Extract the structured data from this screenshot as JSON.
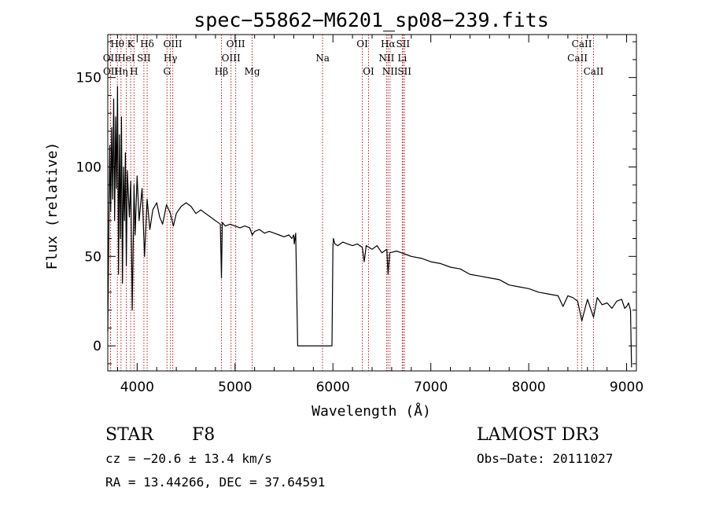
{
  "chart_data": {
    "type": "line",
    "title": "spec−55862−M6201_sp08−239.fits",
    "xlabel": "Wavelength (Å)",
    "ylabel": "Flux (relative)",
    "xlim": [
      3700,
      9100
    ],
    "ylim": [
      -14,
      174
    ],
    "xticks": [
      4000,
      5000,
      6000,
      7000,
      8000,
      9000
    ],
    "xtick_labels": [
      "4000",
      "5000",
      "6000",
      "7000",
      "8000",
      "9000"
    ],
    "yticks": [
      0,
      50,
      100,
      150
    ],
    "ytick_labels": [
      "0",
      "50",
      "100",
      "150"
    ],
    "grid": false,
    "series": [
      {
        "name": "spectrum",
        "x": [
          3700,
          3710,
          3720,
          3730,
          3740,
          3750,
          3760,
          3770,
          3780,
          3790,
          3800,
          3810,
          3820,
          3830,
          3840,
          3850,
          3860,
          3870,
          3880,
          3890,
          3900,
          3920,
          3935,
          3950,
          3968,
          3980,
          4000,
          4020,
          4050,
          4075,
          4102,
          4130,
          4160,
          4200,
          4230,
          4260,
          4300,
          4340,
          4370,
          4400,
          4450,
          4500,
          4550,
          4600,
          4650,
          4700,
          4750,
          4800,
          4850,
          4861,
          4870,
          4900,
          4950,
          5000,
          5050,
          5100,
          5150,
          5175,
          5200,
          5250,
          5300,
          5350,
          5400,
          5450,
          5500,
          5550,
          5580,
          5600,
          5605,
          5620,
          5640,
          5700,
          5800,
          5900,
          5990,
          6000,
          6005,
          6020,
          6050,
          6100,
          6150,
          6200,
          6250,
          6300,
          6320,
          6340,
          6400,
          6450,
          6500,
          6550,
          6563,
          6580,
          6650,
          6700,
          6750,
          6800,
          6900,
          7000,
          7100,
          7200,
          7300,
          7400,
          7500,
          7600,
          7700,
          7800,
          7900,
          8000,
          8100,
          8200,
          8300,
          8350,
          8400,
          8450,
          8500,
          8542,
          8600,
          8662,
          8700,
          8750,
          8800,
          8850,
          8900,
          8950,
          8980,
          9000,
          9020,
          9040,
          9050
        ],
        "values": [
          8,
          60,
          112,
          75,
          122,
          82,
          138,
          70,
          128,
          88,
          145,
          40,
          118,
          60,
          128,
          35,
          100,
          70,
          108,
          45,
          98,
          72,
          92,
          20,
          90,
          62,
          95,
          70,
          88,
          50,
          82,
          65,
          76,
          80,
          72,
          68,
          79,
          74,
          67,
          74,
          78,
          80,
          78,
          74,
          76,
          74,
          72,
          70,
          68,
          38,
          69,
          67,
          68,
          67,
          66,
          67,
          66,
          62,
          64,
          65,
          63,
          64,
          63,
          62,
          61,
          62,
          60,
          62,
          57,
          63,
          0,
          0,
          0,
          0,
          0,
          55,
          60,
          57,
          56,
          58,
          57,
          56,
          57,
          55,
          47,
          56,
          54,
          56,
          52,
          54,
          40,
          52,
          53,
          52,
          51,
          50,
          49,
          47,
          46,
          44,
          43,
          40,
          39,
          38,
          37,
          34,
          33,
          32,
          30,
          29,
          28,
          22,
          28,
          27,
          25,
          14,
          26,
          16,
          27,
          23,
          24,
          21,
          25,
          26,
          21,
          22,
          24,
          20,
          -12
        ]
      }
    ],
    "spectral_lines": [
      {
        "label": "Hθ",
        "x": 3798,
        "row": 1
      },
      {
        "label": "Hη",
        "x": 3835,
        "row": 3
      },
      {
        "label": "OII",
        "x": 3727,
        "row": 2
      },
      {
        "label": "OII",
        "x": 3729,
        "row": 3
      },
      {
        "label": "HeI",
        "x": 3889,
        "row": 2
      },
      {
        "label": "K",
        "x": 3934,
        "row": 1
      },
      {
        "label": "H",
        "x": 3968,
        "row": 3
      },
      {
        "label": "SII",
        "x": 4069,
        "row": 2
      },
      {
        "label": "Hδ",
        "x": 4102,
        "row": 1
      },
      {
        "label": "G",
        "x": 4305,
        "row": 3
      },
      {
        "label": "Hγ",
        "x": 4340,
        "row": 2
      },
      {
        "label": "OIII",
        "x": 4364,
        "row": 1
      },
      {
        "label": "Hβ",
        "x": 4861,
        "row": 3
      },
      {
        "label": "OIII",
        "x": 4959,
        "row": 2
      },
      {
        "label": "OIII",
        "x": 5007,
        "row": 1
      },
      {
        "label": "Mg",
        "x": 5175,
        "row": 3
      },
      {
        "label": "Na",
        "x": 5894,
        "row": 2
      },
      {
        "label": "OI",
        "x": 6300,
        "row": 1
      },
      {
        "label": "OI",
        "x": 6364,
        "row": 3
      },
      {
        "label": "NII",
        "x": 6548,
        "row": 2
      },
      {
        "label": "Hα",
        "x": 6563,
        "row": 1
      },
      {
        "label": "NII",
        "x": 6583,
        "row": 3
      },
      {
        "label": "Li",
        "x": 6708,
        "row": 2
      },
      {
        "label": "SII",
        "x": 6716,
        "row": 1
      },
      {
        "label": "SII",
        "x": 6731,
        "row": 3
      },
      {
        "label": "CaII",
        "x": 8498,
        "row": 2
      },
      {
        "label": "CaII",
        "x": 8542,
        "row": 1
      },
      {
        "label": "CaII",
        "x": 8662,
        "row": 3
      }
    ]
  },
  "info": {
    "class": "STAR",
    "subclass": "F8",
    "survey": "LAMOST DR3",
    "redshift": "cz = −20.6 ± 13.4 km/s",
    "obs_date": "Obs−Date: 20111027",
    "coords": "RA =  13.44266, DEC =  37.64591"
  },
  "colors": {
    "spectrum": "#000000",
    "line_markers": "#b22222",
    "axes": "#000000",
    "background": "#ffffff"
  }
}
